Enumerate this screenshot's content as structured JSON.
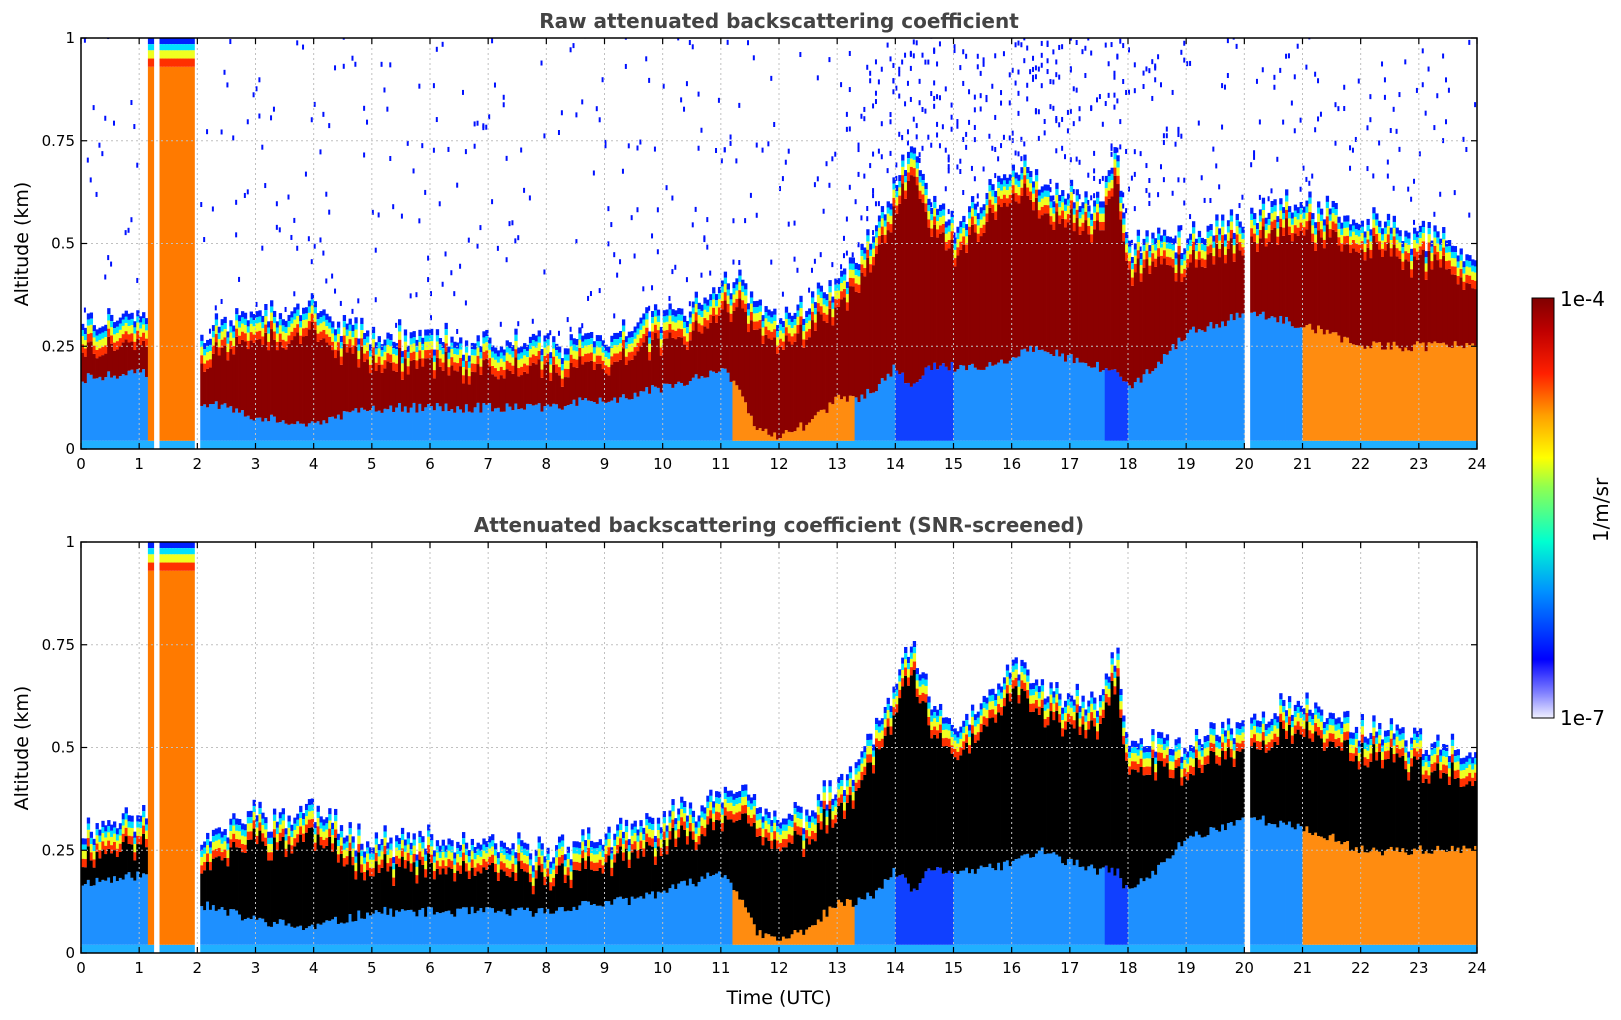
{
  "chart_data": [
    {
      "type": "heatmap",
      "title": "Raw attenuated backscattering coefficient",
      "xlabel": "",
      "ylabel": "Altitude (km)",
      "xlim": [
        0,
        24
      ],
      "ylim": [
        0,
        1
      ],
      "xticks": [
        "0",
        "1",
        "2",
        "3",
        "4",
        "5",
        "6",
        "7",
        "8",
        "9",
        "10",
        "11",
        "12",
        "13",
        "14",
        "15",
        "16",
        "17",
        "18",
        "19",
        "20",
        "21",
        "22",
        "23",
        "24"
      ],
      "yticks": [
        "0",
        "0.25",
        "0.5",
        "0.75",
        "1"
      ],
      "grid": true,
      "screened": false
    },
    {
      "type": "heatmap",
      "title": "Attenuated backscattering coefficient (SNR-screened)",
      "xlabel": "Time (UTC)",
      "ylabel": "Altitude (km)",
      "xlim": [
        0,
        24
      ],
      "ylim": [
        0,
        1
      ],
      "xticks": [
        "0",
        "1",
        "2",
        "3",
        "4",
        "5",
        "6",
        "7",
        "8",
        "9",
        "10",
        "11",
        "12",
        "13",
        "14",
        "15",
        "16",
        "17",
        "18",
        "19",
        "20",
        "21",
        "22",
        "23",
        "24"
      ],
      "yticks": [
        "0",
        "0.25",
        "0.5",
        "0.75",
        "1"
      ],
      "grid": true,
      "screened": true
    }
  ],
  "profile": {
    "time_utc": [
      0,
      0.5,
      0.65,
      1.0,
      1.3,
      2.0,
      2.5,
      3.0,
      3.5,
      3.9,
      4.5,
      5.0,
      6.0,
      7.0,
      8.0,
      8.7,
      9.0,
      9.5,
      10.0,
      10.5,
      11.0,
      11.3,
      11.6,
      12.0,
      12.5,
      13.0,
      13.3,
      13.7,
      14.0,
      14.3,
      14.6,
      15.0,
      15.5,
      16.0,
      16.5,
      17.0,
      17.5,
      17.8,
      18.0,
      18.5,
      19.0,
      19.5,
      20.0,
      20.5,
      21.0,
      21.5,
      22.0,
      22.5,
      23.0,
      23.5,
      24.0
    ],
    "layer_bottom_km": [
      0.17,
      0.18,
      0.18,
      0.19,
      0.18,
      0.12,
      0.1,
      0.08,
      0.07,
      0.06,
      0.08,
      0.1,
      0.1,
      0.1,
      0.1,
      0.12,
      0.12,
      0.13,
      0.15,
      0.17,
      0.2,
      0.15,
      0.05,
      0.03,
      0.06,
      0.12,
      0.12,
      0.15,
      0.2,
      0.15,
      0.2,
      0.2,
      0.2,
      0.22,
      0.25,
      0.22,
      0.2,
      0.2,
      0.15,
      0.2,
      0.28,
      0.3,
      0.33,
      0.32,
      0.3,
      0.28,
      0.25,
      0.25,
      0.25,
      0.25,
      0.25
    ],
    "layer_top_km": [
      0.3,
      0.32,
      0.33,
      0.33,
      0.33,
      0.28,
      0.3,
      0.35,
      0.32,
      0.36,
      0.3,
      0.28,
      0.27,
      0.26,
      0.25,
      0.28,
      0.28,
      0.3,
      0.33,
      0.35,
      0.4,
      0.42,
      0.35,
      0.32,
      0.35,
      0.4,
      0.45,
      0.55,
      0.65,
      0.75,
      0.6,
      0.55,
      0.6,
      0.7,
      0.65,
      0.62,
      0.6,
      0.75,
      0.5,
      0.52,
      0.5,
      0.55,
      0.55,
      0.6,
      0.6,
      0.58,
      0.55,
      0.55,
      0.52,
      0.5,
      0.45
    ],
    "plume_time_range": [
      1.15,
      1.95
    ],
    "gap_times": [
      1.3,
      2.0,
      20.05
    ]
  },
  "colorbar": {
    "max_label": "1e-4",
    "min_label": "1e-7",
    "unit": "1/m/sr",
    "colormap": [
      "#e6e6fa",
      "#0000ff",
      "#00b4ff",
      "#00ffc8",
      "#ffff00",
      "#ff8c00",
      "#ff0000",
      "#800000"
    ]
  }
}
